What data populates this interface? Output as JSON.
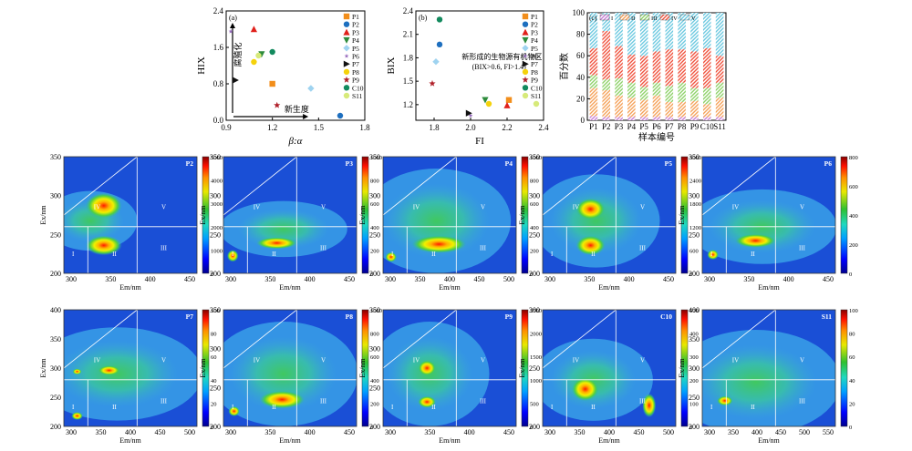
{
  "chart_data": [
    {
      "id": "a",
      "type": "scatter",
      "panel_label": "(a)",
      "xlabel": "β:α",
      "ylabel": "HIX",
      "xlim": [
        0.9,
        1.8
      ],
      "ylim": [
        0.0,
        2.4
      ],
      "xticks": [
        "0.9",
        "1.2",
        "1.5",
        "1.8"
      ],
      "yticks": [
        "0.0",
        "0.8",
        "1.6",
        "2.4"
      ],
      "annotations": [
        "新生度",
        "腐殖化"
      ],
      "points": [
        {
          "name": "P1",
          "x": 1.2,
          "y": 0.8,
          "marker": "square",
          "color": "#f28e1b"
        },
        {
          "name": "P2",
          "x": 1.64,
          "y": 0.1,
          "marker": "circle",
          "color": "#1e6fbf"
        },
        {
          "name": "P3",
          "x": 1.08,
          "y": 2.0,
          "marker": "triangle-up",
          "color": "#e0201b"
        },
        {
          "name": "P4",
          "x": 1.13,
          "y": 1.45,
          "marker": "triangle-down",
          "color": "#2e8b3c"
        },
        {
          "name": "P5",
          "x": 1.45,
          "y": 0.7,
          "marker": "diamond",
          "color": "#9fd3f0"
        },
        {
          "name": "P6",
          "x": 0.93,
          "y": 1.95,
          "marker": "star-small",
          "color": "#9a6fc0"
        },
        {
          "name": "P7",
          "x": 0.96,
          "y": 0.88,
          "marker": "triangle-right",
          "color": "#111111"
        },
        {
          "name": "P8",
          "x": 1.08,
          "y": 1.28,
          "marker": "circle",
          "color": "#f5d20b"
        },
        {
          "name": "P9",
          "x": 1.23,
          "y": 0.33,
          "marker": "star",
          "color": "#b0202a"
        },
        {
          "name": "C10",
          "x": 1.2,
          "y": 1.5,
          "marker": "circle",
          "color": "#138a5e"
        },
        {
          "name": "S11",
          "x": 1.11,
          "y": 1.42,
          "marker": "circle",
          "color": "#d7ea7a"
        }
      ]
    },
    {
      "id": "b",
      "type": "scatter",
      "panel_label": "(b)",
      "xlabel": "FI",
      "ylabel": "BIX",
      "xlim": [
        1.7,
        2.4
      ],
      "ylim": [
        1.0,
        2.4
      ],
      "xticks": [
        "1.8",
        "2.0",
        "2.2",
        "2.4"
      ],
      "yticks": [
        "1.2",
        "1.5",
        "1.8",
        "2.1",
        "2.4"
      ],
      "annotations": [
        "新形成的生物源有机物区",
        "(BIX>0.6, FI>1.4)"
      ],
      "points": [
        {
          "name": "P1",
          "x": 2.21,
          "y": 1.26,
          "marker": "square",
          "color": "#f28e1b"
        },
        {
          "name": "P2",
          "x": 1.83,
          "y": 1.97,
          "marker": "circle",
          "color": "#1e6fbf"
        },
        {
          "name": "P3",
          "x": 2.2,
          "y": 1.19,
          "marker": "triangle-up",
          "color": "#e0201b"
        },
        {
          "name": "P4",
          "x": 2.08,
          "y": 1.26,
          "marker": "triangle-down",
          "color": "#2e8b3c"
        },
        {
          "name": "P5",
          "x": 1.81,
          "y": 1.75,
          "marker": "diamond",
          "color": "#9fd3f0"
        },
        {
          "name": "P6",
          "x": 2.0,
          "y": 1.06,
          "marker": "star-small",
          "color": "#9a6fc0"
        },
        {
          "name": "P7",
          "x": 1.99,
          "y": 1.09,
          "marker": "triangle-right",
          "color": "#111111"
        },
        {
          "name": "P8",
          "x": 2.1,
          "y": 1.21,
          "marker": "circle",
          "color": "#f5d20b"
        },
        {
          "name": "P9",
          "x": 1.79,
          "y": 1.47,
          "marker": "star",
          "color": "#b0202a"
        },
        {
          "name": "C10",
          "x": 1.83,
          "y": 2.29,
          "marker": "circle",
          "color": "#138a5e"
        },
        {
          "name": "S11",
          "x": 2.36,
          "y": 1.21,
          "marker": "circle",
          "color": "#d7ea7a"
        }
      ]
    },
    {
      "id": "c",
      "type": "bar",
      "stacked": true,
      "panel_label": "(c)",
      "xlabel": "样本编号",
      "ylabel": "百分数",
      "ylim": [
        0,
        100
      ],
      "yticks": [
        "0",
        "20",
        "40",
        "60",
        "80",
        "100"
      ],
      "categories": [
        "P1",
        "P2",
        "P3",
        "P4",
        "P5",
        "P6",
        "P7",
        "P8",
        "P9",
        "C10",
        "S11"
      ],
      "series": [
        {
          "name": "I",
          "color": "#c77fd6",
          "values": [
            4,
            3,
            3,
            3,
            3,
            3,
            3,
            3,
            3,
            3,
            3
          ]
        },
        {
          "name": "II",
          "color": "#f5a25a",
          "values": [
            26,
            25,
            20,
            18,
            16,
            20,
            14,
            14,
            15,
            12,
            18
          ]
        },
        {
          "name": "III",
          "color": "#8fd26a",
          "values": [
            12,
            10,
            16,
            14,
            12,
            12,
            15,
            18,
            12,
            15,
            14
          ]
        },
        {
          "name": "IV",
          "color": "#f0543f",
          "values": [
            25,
            45,
            30,
            26,
            29,
            29,
            34,
            31,
            34,
            37,
            25
          ]
        },
        {
          "name": "V",
          "color": "#6cc9e0",
          "values": [
            33,
            17,
            31,
            39,
            40,
            36,
            34,
            34,
            36,
            33,
            40
          ]
        }
      ]
    }
  ],
  "eem_panels": [
    {
      "label": "P2",
      "cb_ticks": [
        "0",
        "1000",
        "2000",
        "3000",
        "4000",
        "5000"
      ],
      "yticks": [
        "200",
        "250",
        "300",
        "350"
      ],
      "xticks": [
        "300",
        "350",
        "400",
        "450"
      ],
      "xlabel": "Em/nm",
      "ylabel": "Ex/nm",
      "regions": [
        "I",
        "II",
        "III",
        "IV",
        "V"
      ]
    },
    {
      "label": "P3",
      "cb_ticks": [
        "0",
        "200",
        "400",
        "600",
        "800",
        "1000"
      ],
      "yticks": [
        "200",
        "250",
        "300",
        "350"
      ],
      "xticks": [
        "300",
        "350",
        "400",
        "450"
      ],
      "xlabel": "Em/nm",
      "ylabel": "Ex/nm",
      "regions": [
        "I",
        "II",
        "III",
        "IV",
        "V"
      ]
    },
    {
      "label": "P4",
      "cb_ticks": [
        "0",
        "200",
        "400",
        "600",
        "800",
        "1000"
      ],
      "yticks": [
        "200",
        "250",
        "300",
        "350"
      ],
      "xticks": [
        "300",
        "350",
        "400",
        "450",
        "500"
      ],
      "xlabel": "Em/nm",
      "ylabel": "Ex/nm",
      "regions": [
        "I",
        "II",
        "III",
        "IV",
        "V"
      ]
    },
    {
      "label": "P5",
      "cb_ticks": [
        "0",
        "600",
        "1200",
        "1800",
        "2400",
        "3000"
      ],
      "yticks": [
        "200",
        "250",
        "300",
        "350"
      ],
      "xticks": [
        "300",
        "350",
        "400",
        "450"
      ],
      "xlabel": "Em/nm",
      "ylabel": "Ex/nm",
      "regions": [
        "I",
        "II",
        "III",
        "IV",
        "V"
      ]
    },
    {
      "label": "P6",
      "cb_ticks": [
        "0",
        "200",
        "400",
        "600",
        "800"
      ],
      "yticks": [
        "200",
        "250",
        "300",
        "350"
      ],
      "xticks": [
        "300",
        "350",
        "400",
        "450"
      ],
      "xlabel": "Em/nm",
      "ylabel": "Ex/nm",
      "regions": [
        "I",
        "II",
        "III",
        "IV",
        "V"
      ]
    },
    {
      "label": "P7",
      "cb_ticks": [
        "0",
        "20",
        "40",
        "60",
        "80",
        "100"
      ],
      "yticks": [
        "200",
        "250",
        "300",
        "350",
        "400"
      ],
      "xticks": [
        "300",
        "350",
        "400",
        "450",
        "500"
      ],
      "xlabel": "Em/nm",
      "ylabel": "Ex/nm",
      "regions": [
        "I",
        "II",
        "III",
        "IV",
        "V"
      ]
    },
    {
      "label": "P8",
      "cb_ticks": [
        "0",
        "200",
        "400",
        "600",
        "800",
        "1000"
      ],
      "yticks": [
        "200",
        "250",
        "300",
        "350"
      ],
      "xticks": [
        "300",
        "350",
        "400",
        "450"
      ],
      "xlabel": "Em/nm",
      "ylabel": "Ex/nm",
      "regions": [
        "I",
        "II",
        "III",
        "IV",
        "V"
      ]
    },
    {
      "label": "P9",
      "cb_ticks": [
        "0",
        "500",
        "1000",
        "1500",
        "2000",
        "2500"
      ],
      "yticks": [
        "200",
        "250",
        "300",
        "350"
      ],
      "xticks": [
        "300",
        "350",
        "400",
        "450"
      ],
      "xlabel": "Em/nm",
      "ylabel": "Ex/nm",
      "regions": [
        "I",
        "II",
        "III",
        "IV",
        "V"
      ]
    },
    {
      "label": "C10",
      "cb_ticks": [
        "0",
        "100",
        "200",
        "300",
        "400",
        "500"
      ],
      "yticks": [
        "200",
        "250",
        "300"
      ],
      "xticks": [
        "300",
        "350",
        "400",
        "450",
        "500"
      ],
      "xlabel": "Em/nm",
      "ylabel": "Ex/nm",
      "regions": [
        "I",
        "II",
        "III",
        "IV",
        "V"
      ]
    },
    {
      "label": "S11",
      "cb_ticks": [
        "0",
        "20",
        "40",
        "60",
        "80",
        "100"
      ],
      "yticks": [
        "200",
        "250",
        "300",
        "350",
        "400"
      ],
      "xticks": [
        "300",
        "350",
        "400",
        "450",
        "500",
        "550"
      ],
      "xlabel": "Em/nm",
      "ylabel": "Ex/nm",
      "regions": [
        "I",
        "II",
        "III",
        "IV",
        "V"
      ]
    }
  ]
}
